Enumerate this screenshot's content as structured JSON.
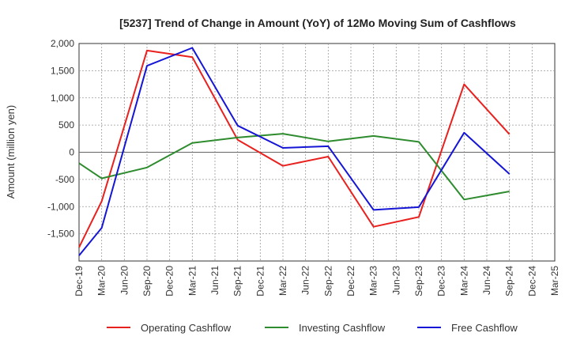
{
  "chart_data": {
    "type": "line",
    "title": "[5237]  Trend of Change in Amount (YoY) of 12Mo Moving Sum of Cashflows",
    "xlabel": "",
    "ylabel": "Amount (million yen)",
    "ylim": [
      -2000,
      2000
    ],
    "y_ticks": [
      2000,
      1500,
      1000,
      500,
      0,
      -500,
      -1000,
      -1500
    ],
    "y_tick_labels": [
      "2,000",
      "1,500",
      "1,000",
      "500",
      "0",
      "-500",
      "-1,000",
      "-1,500"
    ],
    "categories": [
      "Dec-19",
      "Mar-20",
      "Jun-20",
      "Sep-20",
      "Dec-20",
      "Mar-21",
      "Jun-21",
      "Sep-21",
      "Dec-21",
      "Mar-22",
      "Jun-22",
      "Sep-22",
      "Dec-22",
      "Mar-23",
      "Jun-23",
      "Sep-23",
      "Dec-23",
      "Mar-24",
      "Jun-24",
      "Sep-24",
      "Dec-24",
      "Mar-25"
    ],
    "grid": true,
    "legend_position": "bottom",
    "series": [
      {
        "name": "Operating Cashflow",
        "color": "#e8211e",
        "values": [
          -1750,
          -900,
          null,
          1870,
          null,
          1750,
          null,
          230,
          null,
          -250,
          null,
          -80,
          null,
          -1370,
          null,
          -1190,
          null,
          1250,
          null,
          330,
          null,
          null
        ]
      },
      {
        "name": "Investing Cashflow",
        "color": "#2e8b2e",
        "values": [
          -200,
          -480,
          null,
          -280,
          null,
          170,
          null,
          270,
          null,
          340,
          null,
          200,
          null,
          300,
          null,
          190,
          null,
          -870,
          null,
          -720,
          null,
          null
        ]
      },
      {
        "name": "Free Cashflow",
        "color": "#1515d6",
        "values": [
          -1900,
          -1390,
          null,
          1590,
          null,
          1920,
          null,
          490,
          null,
          80,
          null,
          110,
          null,
          -1060,
          null,
          -1010,
          null,
          360,
          null,
          -400,
          null,
          null
        ]
      }
    ]
  }
}
